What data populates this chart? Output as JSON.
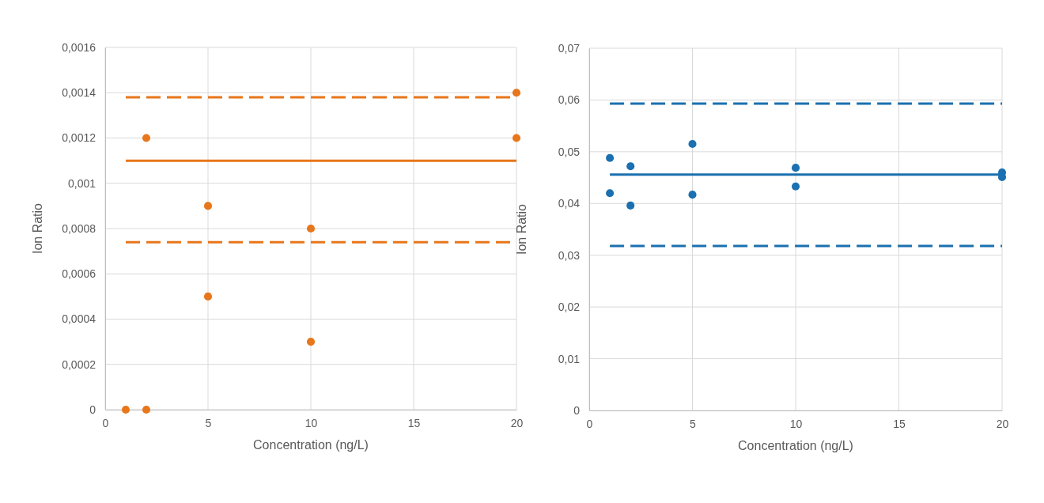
{
  "chart_data": [
    {
      "type": "scatter",
      "xlabel": "Concentration (ng/L)",
      "ylabel": "Ion Ratio",
      "xlim": [
        0,
        20
      ],
      "xticks": [
        0,
        5,
        10,
        15,
        20
      ],
      "ylim": [
        0,
        0.0016
      ],
      "yticks": [
        {
          "value": 0,
          "label": "0"
        },
        {
          "value": 0.0002,
          "label": "0,0002"
        },
        {
          "value": 0.0004,
          "label": "0,0004"
        },
        {
          "value": 0.0006,
          "label": "0,0006"
        },
        {
          "value": 0.0008,
          "label": "0,0008"
        },
        {
          "value": 0.001,
          "label": "0,001"
        },
        {
          "value": 0.0012,
          "label": "0,0012"
        },
        {
          "value": 0.0014,
          "label": "0,0014"
        },
        {
          "value": 0.0016,
          "label": "0,0016"
        }
      ],
      "grid": true,
      "series": [
        {
          "marker": "circle",
          "color": "#e8761a",
          "x": [
            1,
            2,
            2,
            5,
            5,
            10,
            10,
            20,
            20
          ],
          "values": [
            0,
            0,
            0.0012,
            0.0009,
            0.0005,
            0.0008,
            0.0003,
            0.0014,
            0.0012
          ]
        },
        {
          "type": "line",
          "line_style": "solid",
          "marker": "none",
          "color": "#e8761a",
          "x": [
            1,
            20
          ],
          "values": [
            0.0011,
            0.0011
          ]
        },
        {
          "type": "line",
          "line_style": "dashed",
          "marker": "none",
          "color": "#e8761a",
          "x": [
            1,
            20
          ],
          "values": [
            0.00138,
            0.00138
          ]
        },
        {
          "type": "line",
          "line_style": "dashed",
          "marker": "none",
          "color": "#e8761a",
          "x": [
            1,
            20
          ],
          "values": [
            0.00074,
            0.00074
          ]
        }
      ]
    },
    {
      "type": "scatter",
      "xlabel": "Concentration (ng/L)",
      "ylabel": "Ion Ratio",
      "xlim": [
        0,
        20
      ],
      "xticks": [
        0,
        5,
        10,
        15,
        20
      ],
      "ylim": [
        0,
        0.07
      ],
      "yticks": [
        {
          "value": 0,
          "label": "0"
        },
        {
          "value": 0.01,
          "label": "0,01"
        },
        {
          "value": 0.02,
          "label": "0,02"
        },
        {
          "value": 0.03,
          "label": "0,03"
        },
        {
          "value": 0.04,
          "label": "0,04"
        },
        {
          "value": 0.05,
          "label": "0,05"
        },
        {
          "value": 0.06,
          "label": "0,06"
        },
        {
          "value": 0.07,
          "label": "0,07"
        }
      ],
      "grid": true,
      "series": [
        {
          "marker": "circle",
          "color": "#1a70b0",
          "x": [
            1,
            1,
            2,
            2,
            5,
            5,
            10,
            10,
            20,
            20
          ],
          "values": [
            0.0488,
            0.042,
            0.0472,
            0.0396,
            0.0515,
            0.0417,
            0.0469,
            0.0433,
            0.046,
            0.0451
          ]
        },
        {
          "type": "line",
          "line_style": "solid",
          "marker": "none",
          "color": "#1a70b0",
          "x": [
            1,
            20
          ],
          "values": [
            0.0456,
            0.0456
          ]
        },
        {
          "type": "line",
          "line_style": "dashed",
          "marker": "none",
          "color": "#1a70b0",
          "x": [
            1,
            20
          ],
          "values": [
            0.0593,
            0.0593
          ]
        },
        {
          "type": "line",
          "line_style": "dashed",
          "marker": "none",
          "color": "#1a70b0",
          "x": [
            1,
            20
          ],
          "values": [
            0.0318,
            0.0318
          ]
        }
      ]
    }
  ]
}
